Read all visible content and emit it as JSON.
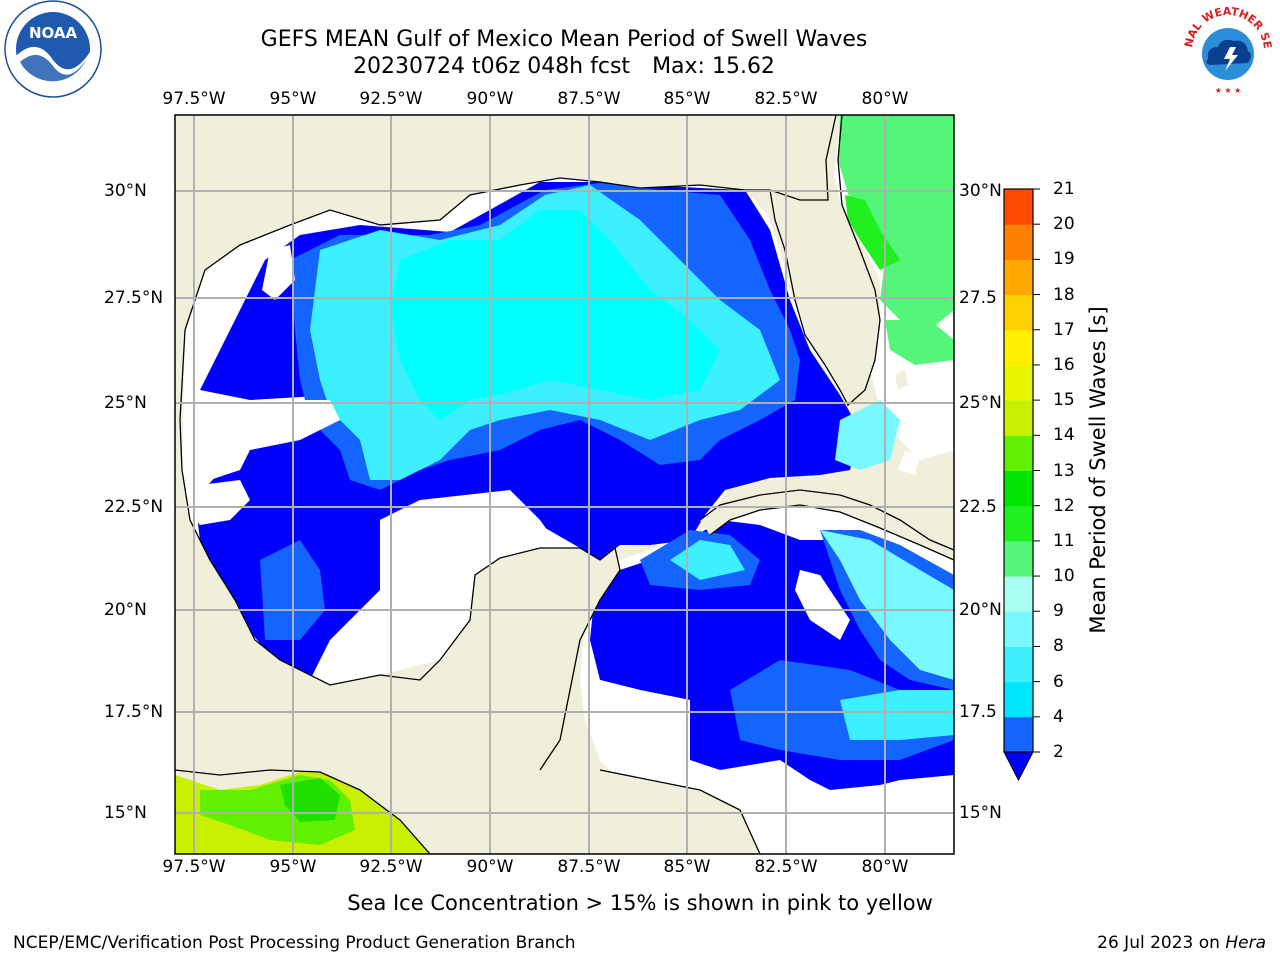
{
  "title_line1": "GEFS MEAN Gulf of Mexico Mean Period of Swell Waves",
  "title_line2_date": "20230724 t06z 048h fcst",
  "title_line2_max": "Max: 15.62",
  "lon_ticks": [
    "97.5°W",
    "95°W",
    "92.5°W",
    "90°W",
    "87.5°W",
    "85°W",
    "82.5°W",
    "80°W"
  ],
  "lat_ticks": [
    "30°N",
    "27.5°N",
    "25°N",
    "22.5°N",
    "20°N",
    "17.5°N",
    "15°N"
  ],
  "lat_ticks_right": [
    "30°N",
    "27.5",
    "25°N",
    "22.5",
    "20°N",
    "17.5",
    "15°N"
  ],
  "colorbar": {
    "label": "Mean Period of Swell Waves [s]",
    "ticks": [
      "2",
      "4",
      "6",
      "8",
      "9",
      "10",
      "11",
      "12",
      "13",
      "14",
      "15",
      "16",
      "17",
      "18",
      "19",
      "20",
      "21"
    ],
    "colors": [
      "#1464ff",
      "#00e6ff",
      "#3cf0ff",
      "#78f8ff",
      "#a8fff0",
      "#55f57a",
      "#20f020",
      "#00e600",
      "#60f000",
      "#c8f000",
      "#e6f500",
      "#fff000",
      "#ffd000",
      "#ffa800",
      "#ff8000",
      "#ff4a00",
      "#ff2400",
      "#ff0000"
    ],
    "under_color": "#0000ff"
  },
  "note": "Sea Ice Concentration > 15% is shown in pink to yellow",
  "footer_left": "NCEP/EMC/Verification Post Processing Product Generation Branch",
  "footer_right_date": "26 Jul 2023 on",
  "footer_right_host": "Hera",
  "logos": {
    "noaa_text": "NOAA",
    "nws_text": "NATIONAL WEATHER SERVICE"
  }
}
